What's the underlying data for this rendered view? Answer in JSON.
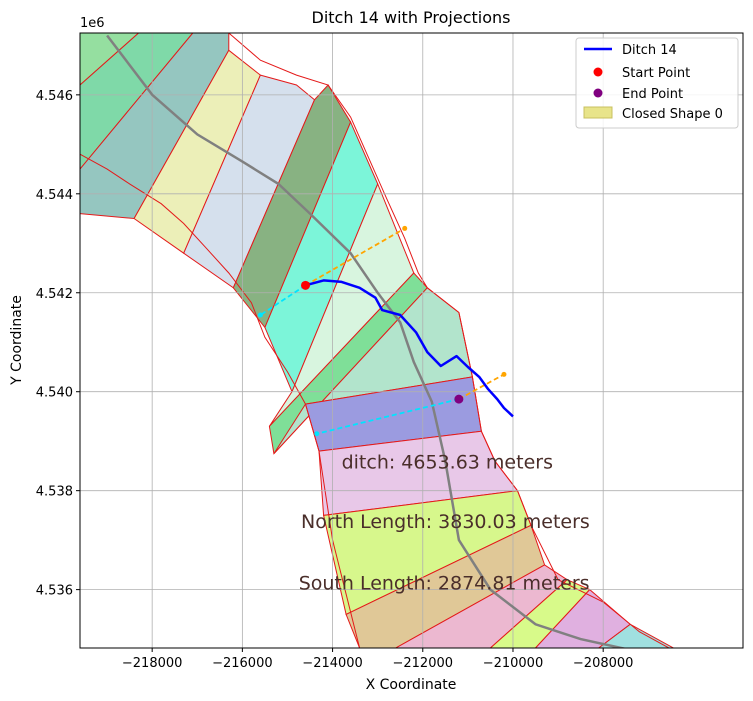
{
  "chart_data": {
    "type": "line",
    "title": "Ditch 14 with Projections",
    "xlabel": "X Coordinate",
    "ylabel": "Y Coordinate",
    "y_offset_label": "1e6",
    "xlim": [
      -219600,
      -204900
    ],
    "ylim": [
      4.53482,
      4.54725
    ],
    "x_ticks": [
      -218000,
      -216000,
      -214000,
      -212000,
      -210000,
      -208000
    ],
    "x_tick_labels": [
      "−218000",
      "−216000",
      "−214000",
      "−212000",
      "−210000",
      "−208000"
    ],
    "y_ticks": [
      4.536,
      4.538,
      4.54,
      4.542,
      4.544,
      4.546
    ],
    "y_tick_labels": [
      "4.536",
      "4.538",
      "4.540",
      "4.542",
      "4.544",
      "4.546"
    ],
    "grid": true,
    "legend_position": "top-right",
    "legend": [
      {
        "label": "Ditch 14",
        "kind": "line",
        "color": "#0000ff"
      },
      {
        "label": "Start Point",
        "kind": "point",
        "color": "#ff0000"
      },
      {
        "label": "End Point",
        "kind": "point",
        "color": "#800080"
      },
      {
        "label": "Closed Shape 0",
        "kind": "patch",
        "color": "#e8e48a"
      }
    ],
    "annotations": [
      {
        "text": "ditch: 4653.63 meters",
        "x": -213800,
        "y": 4.53845
      },
      {
        "text": "North Length: 3830.03 meters",
        "x": -214700,
        "y": 4.53725
      },
      {
        "text": "South Length: 2874.81 meters",
        "x": -214750,
        "y": 4.536
      }
    ],
    "ditch_14": [
      [
        -214600,
        4.54215
      ],
      [
        -214200,
        4.54225
      ],
      [
        -213800,
        4.54222
      ],
      [
        -213400,
        4.5421
      ],
      [
        -213050,
        4.5419
      ],
      [
        -212900,
        4.54165
      ],
      [
        -212500,
        4.54155
      ],
      [
        -212150,
        4.5412
      ],
      [
        -211900,
        4.5408
      ],
      [
        -211600,
        4.54052
      ],
      [
        -211250,
        4.54072
      ],
      [
        -211000,
        4.5405
      ],
      [
        -210750,
        4.5403
      ],
      [
        -210550,
        4.54005
      ],
      [
        -210350,
        4.53985
      ],
      [
        -210200,
        4.53967
      ],
      [
        -210000,
        4.5395
      ]
    ],
    "start_point": [
      -214600,
      4.54215
    ],
    "end_point": [
      -211200,
      4.53985
    ],
    "centerline": [
      [
        -219000,
        4.5472
      ],
      [
        -218000,
        4.546
      ],
      [
        -217000,
        4.5452
      ],
      [
        -216000,
        4.54465
      ],
      [
        -215200,
        4.5442
      ],
      [
        -214500,
        4.5436
      ],
      [
        -213600,
        4.5428
      ],
      [
        -213000,
        4.542
      ],
      [
        -212500,
        4.5414
      ],
      [
        -212200,
        4.5406
      ],
      [
        -211800,
        4.5398
      ],
      [
        -211500,
        4.5386
      ],
      [
        -211200,
        4.537
      ],
      [
        -210500,
        4.536
      ],
      [
        -209500,
        4.5353
      ],
      [
        -208500,
        4.535
      ],
      [
        -207000,
        4.5347
      ],
      [
        -206000,
        4.5345
      ]
    ],
    "north_projection_start": [
      [
        -214600,
        4.54215
      ],
      [
        -212400,
        4.5433
      ]
    ],
    "north_projection_end": [
      [
        -211200,
        4.53985
      ],
      [
        -210200,
        4.54035
      ]
    ],
    "south_projection_start": [
      [
        -214600,
        4.54215
      ],
      [
        -215600,
        4.54155
      ]
    ],
    "south_projection_end": [
      [
        -211200,
        4.53985
      ],
      [
        -214350,
        4.53915
      ]
    ],
    "outline": [
      [
        -218800,
        4.54725
      ],
      [
        -216300,
        4.54725
      ],
      [
        -215600,
        4.5467
      ],
      [
        -214800,
        4.5464
      ],
      [
        -214100,
        4.5462
      ],
      [
        -213600,
        4.54555
      ],
      [
        -212800,
        4.5439
      ],
      [
        -212400,
        4.5431
      ],
      [
        -212100,
        4.5424
      ],
      [
        -211900,
        4.5421
      ],
      [
        -211200,
        4.5416
      ],
      [
        -210900,
        4.5403
      ],
      [
        -210700,
        4.5392
      ],
      [
        -210400,
        4.5386
      ],
      [
        -209900,
        4.538
      ],
      [
        -209600,
        4.5373
      ],
      [
        -209000,
        4.5362
      ],
      [
        -208000,
        4.53575
      ],
      [
        -207200,
        4.53515
      ],
      [
        -206500,
        4.5348
      ],
      [
        -205600,
        4.5344
      ],
      [
        -204900,
        4.5343
      ],
      [
        -204900,
        4.53482
      ],
      [
        -213400,
        4.53482
      ],
      [
        -214000,
        4.537
      ],
      [
        -214300,
        4.5388
      ],
      [
        -214600,
        4.53975
      ],
      [
        -215000,
        4.5404
      ],
      [
        -215500,
        4.5411
      ],
      [
        -215800,
        4.5418
      ],
      [
        -216300,
        4.5424
      ],
      [
        -216800,
        4.5429
      ],
      [
        -217300,
        4.5434
      ],
      [
        -217800,
        4.5438
      ],
      [
        -218500,
        4.5442
      ],
      [
        -219000,
        4.5445
      ],
      [
        -219600,
        4.5448
      ],
      [
        -219600,
        4.54725
      ]
    ],
    "segments": [
      {
        "color": "#95dfa0",
        "poly": [
          [
            -219600,
            4.54725
          ],
          [
            -218300,
            4.54725
          ],
          [
            -219600,
            4.5462
          ]
        ]
      },
      {
        "color": "#7fd9a8",
        "poly": [
          [
            -219600,
            4.5462
          ],
          [
            -218300,
            4.54725
          ],
          [
            -217100,
            4.54725
          ],
          [
            -219600,
            4.5445
          ]
        ]
      },
      {
        "color": "#95c6c0",
        "poly": [
          [
            -219600,
            4.5445
          ],
          [
            -217100,
            4.54725
          ],
          [
            -216300,
            4.54725
          ],
          [
            -216300,
            4.5469
          ],
          [
            -218400,
            4.5435
          ],
          [
            -219600,
            4.5436
          ]
        ]
      },
      {
        "color": "#ecefb8",
        "poly": [
          [
            -218400,
            4.5435
          ],
          [
            -216300,
            4.5469
          ],
          [
            -215600,
            4.5464
          ],
          [
            -217300,
            4.5428
          ]
        ]
      },
      {
        "color": "#d5e0ed",
        "poly": [
          [
            -217300,
            4.5428
          ],
          [
            -215600,
            4.5464
          ],
          [
            -214800,
            4.5462
          ],
          [
            -214400,
            4.5459
          ],
          [
            -216200,
            4.5421
          ]
        ]
      },
      {
        "color": "#88b282",
        "poly": [
          [
            -216200,
            4.5421
          ],
          [
            -214400,
            4.5459
          ],
          [
            -214100,
            4.5462
          ],
          [
            -213600,
            4.54545
          ],
          [
            -215500,
            4.5413
          ]
        ]
      },
      {
        "color": "#7cf5d9",
        "poly": [
          [
            -215500,
            4.5413
          ],
          [
            -213600,
            4.54545
          ],
          [
            -213000,
            4.5442
          ],
          [
            -214900,
            4.54
          ]
        ]
      },
      {
        "color": "#d8f5df",
        "poly": [
          [
            -214900,
            4.54
          ],
          [
            -213000,
            4.5442
          ],
          [
            -212600,
            4.5433
          ],
          [
            -212200,
            4.5424
          ],
          [
            -215400,
            4.5393
          ]
        ]
      },
      {
        "color": "#7fdf98",
        "poly": [
          [
            -215400,
            4.5393
          ],
          [
            -212200,
            4.5424
          ],
          [
            -211900,
            4.5421
          ],
          [
            -215300,
            4.53875
          ]
        ]
      },
      {
        "color": "#b2e4cc",
        "poly": [
          [
            -215300,
            4.53875
          ],
          [
            -211900,
            4.5421
          ],
          [
            -211200,
            4.5416
          ],
          [
            -210900,
            4.5403
          ],
          [
            -214600,
            4.53975
          ]
        ]
      },
      {
        "color": "#9b9be0",
        "poly": [
          [
            -214600,
            4.53975
          ],
          [
            -210900,
            4.5403
          ],
          [
            -210700,
            4.5392
          ],
          [
            -214300,
            4.5388
          ]
        ]
      },
      {
        "color": "#e8c8e8",
        "poly": [
          [
            -214300,
            4.5388
          ],
          [
            -210700,
            4.5392
          ],
          [
            -210400,
            4.5386
          ],
          [
            -209900,
            4.538
          ],
          [
            -214200,
            4.5375
          ]
        ]
      },
      {
        "color": "#d7f78c",
        "poly": [
          [
            -214200,
            4.5375
          ],
          [
            -209900,
            4.538
          ],
          [
            -209600,
            4.5373
          ],
          [
            -213700,
            4.5355
          ]
        ]
      },
      {
        "color": "#e0c897",
        "poly": [
          [
            -213700,
            4.5355
          ],
          [
            -209600,
            4.5373
          ],
          [
            -209300,
            4.5365
          ],
          [
            -212600,
            4.53482
          ],
          [
            -213400,
            4.53482
          ]
        ]
      },
      {
        "color": "#ecb8d0",
        "poly": [
          [
            -212600,
            4.53482
          ],
          [
            -209300,
            4.5365
          ],
          [
            -208800,
            4.5362
          ],
          [
            -210500,
            4.53482
          ]
        ]
      },
      {
        "color": "#d8fa8a",
        "poly": [
          [
            -210500,
            4.53482
          ],
          [
            -208800,
            4.5362
          ],
          [
            -208300,
            4.536
          ],
          [
            -209500,
            4.53482
          ]
        ]
      },
      {
        "color": "#e0b0e0",
        "poly": [
          [
            -209500,
            4.53482
          ],
          [
            -208300,
            4.536
          ],
          [
            -207400,
            4.5353
          ],
          [
            -208100,
            4.53482
          ]
        ]
      },
      {
        "color": "#a0e0e0",
        "poly": [
          [
            -208100,
            4.53482
          ],
          [
            -207400,
            4.5353
          ],
          [
            -206400,
            4.5348
          ],
          [
            -206200,
            4.53482
          ]
        ]
      },
      {
        "color": "#f0b8e8",
        "poly": [
          [
            -206200,
            4.53482
          ],
          [
            -206400,
            4.5348
          ],
          [
            -205600,
            4.5344
          ],
          [
            -204900,
            4.5343
          ],
          [
            -204900,
            4.53482
          ]
        ]
      }
    ]
  }
}
